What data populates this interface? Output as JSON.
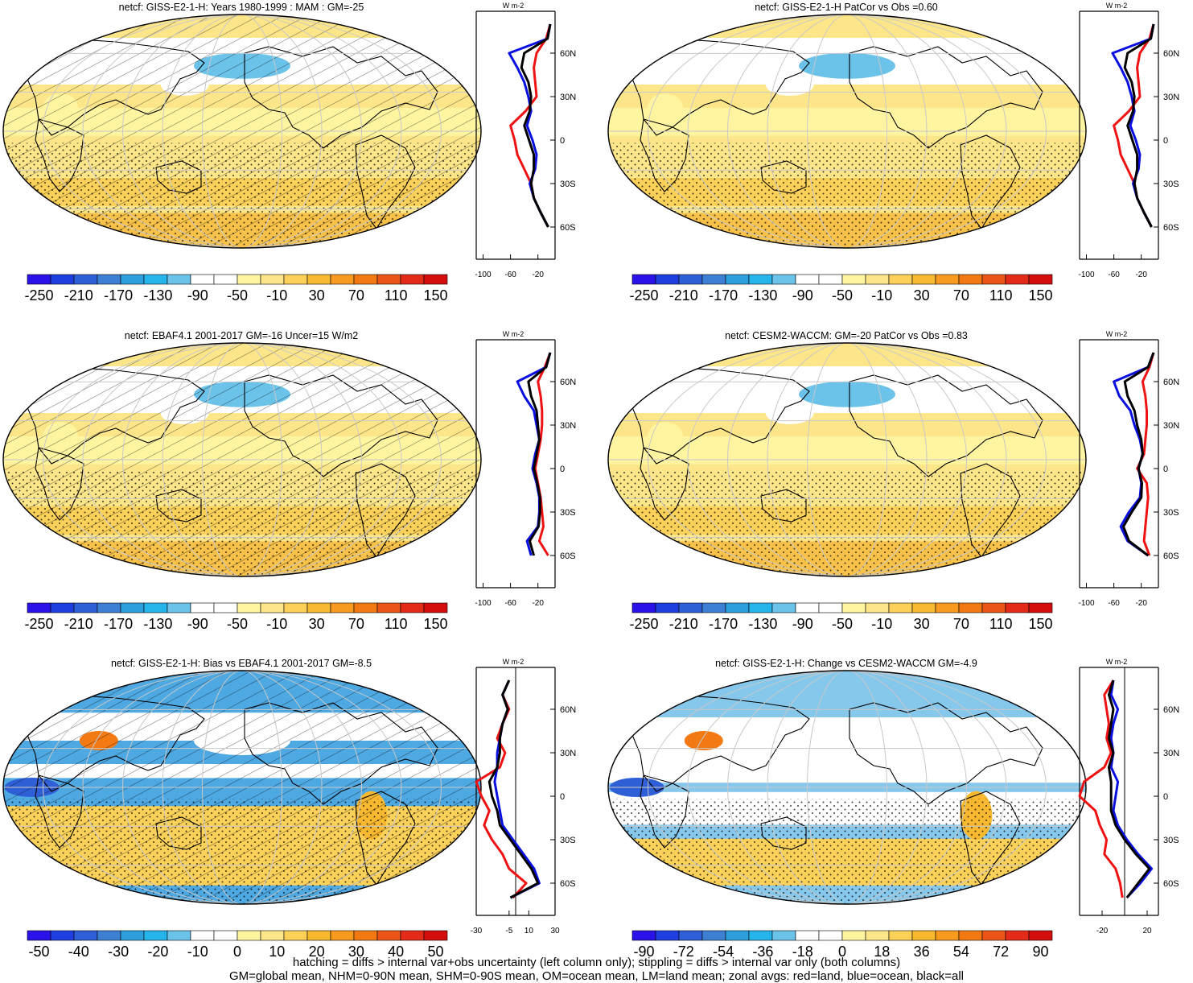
{
  "palettes": {
    "blue_red": [
      "#2a12e8",
      "#1f3ee0",
      "#2f5fd6",
      "#3d7fd2",
      "#2c9fdc",
      "#27b4ea",
      "#6cc3ea",
      "#ffffff",
      "#ffffff",
      "#fff5a0",
      "#fde68a",
      "#fbd15a",
      "#f8b82f",
      "#f79a1f",
      "#f37a12",
      "#ec5518",
      "#e42a18",
      "#d40d0d"
    ],
    "colors": {
      "ocean_zonal": "#0a10e0",
      "land_zonal": "#ee1212",
      "all_zonal": "#000000",
      "grid": "#c8c8c8",
      "coast": "#000000"
    }
  },
  "chart_data": [
    {
      "id": "p1",
      "type": "heatmap",
      "title": "netcf: GISS-E2-1-H: Years 1980-1999 : MAM : GM=-25",
      "colorbar_labels": [
        "-250",
        "-210",
        "-170",
        "-130",
        "-90",
        "-50",
        "-10",
        "30",
        "70",
        "110",
        "150"
      ],
      "zonal": {
        "xticks": [
          "-100",
          "-60",
          "-20"
        ],
        "xrange": [
          -110,
          5
        ],
        "unit": "W m-2",
        "lat_labels": [
          "60N",
          "30N",
          "0",
          "30S",
          "60S"
        ],
        "lat": [
          80,
          70,
          60,
          50,
          40,
          30,
          20,
          10,
          0,
          -10,
          -20,
          -30,
          -40,
          -50,
          -60
        ],
        "land": [
          -2,
          -8,
          -22,
          -26,
          -24,
          -22,
          -38,
          -60,
          -54,
          -50,
          -40,
          -30,
          -26,
          -16,
          -5
        ],
        "ocean": [
          -2,
          -6,
          -62,
          -50,
          -40,
          -34,
          -30,
          -36,
          -28,
          -22,
          -24,
          -32,
          -26,
          -16,
          -5
        ],
        "all": [
          -2,
          -6,
          -40,
          -44,
          -34,
          -30,
          -32,
          -40,
          -33,
          -26,
          -26,
          -30,
          -26,
          -16,
          -5
        ]
      }
    },
    {
      "id": "p2",
      "type": "heatmap",
      "title": "netcf: GISS-E2-1-H PatCor vs Obs =0.60",
      "colorbar_labels": [
        "-250",
        "-210",
        "-170",
        "-130",
        "-90",
        "-50",
        "-10",
        "30",
        "70",
        "110",
        "150"
      ],
      "zonal": {
        "xticks": [
          "-100",
          "-60",
          "-20"
        ],
        "xrange": [
          -110,
          5
        ],
        "unit": "W m-2",
        "lat_labels": [
          "60N",
          "30N",
          "0",
          "30S",
          "60S"
        ],
        "lat": [
          80,
          70,
          60,
          50,
          40,
          30,
          20,
          10,
          0,
          -10,
          -20,
          -30,
          -40,
          -50,
          -60
        ],
        "land": [
          -2,
          -8,
          -22,
          -26,
          -24,
          -22,
          -38,
          -60,
          -54,
          -50,
          -40,
          -30,
          -26,
          -16,
          -5
        ],
        "ocean": [
          -2,
          -6,
          -62,
          -50,
          -40,
          -34,
          -30,
          -36,
          -28,
          -22,
          -24,
          -32,
          -26,
          -16,
          -5
        ],
        "all": [
          -2,
          -6,
          -40,
          -44,
          -34,
          -30,
          -32,
          -40,
          -33,
          -26,
          -26,
          -30,
          -26,
          -16,
          -5
        ]
      }
    },
    {
      "id": "p3",
      "type": "heatmap",
      "title": "netcf: EBAF4.1 2001-2017 GM=-16 Uncer=15 W/m2",
      "colorbar_labels": [
        "-250",
        "-210",
        "-170",
        "-130",
        "-90",
        "-50",
        "-10",
        "30",
        "70",
        "110",
        "150"
      ],
      "zonal": {
        "xticks": [
          "-100",
          "-60",
          "-20"
        ],
        "xrange": [
          -110,
          5
        ],
        "unit": "W m-2",
        "lat_labels": [
          "60N",
          "30N",
          "0",
          "30S",
          "60S"
        ],
        "lat": [
          80,
          70,
          60,
          50,
          40,
          30,
          20,
          10,
          0,
          -10,
          -20,
          -30,
          -40,
          -50,
          -60
        ],
        "land": [
          -2,
          -10,
          -20,
          -16,
          -14,
          -14,
          -16,
          -20,
          -24,
          -20,
          -16,
          -14,
          -12,
          -18,
          -5
        ],
        "ocean": [
          -2,
          -8,
          -50,
          -40,
          -26,
          -22,
          -18,
          -24,
          -28,
          -22,
          -18,
          -18,
          -20,
          -36,
          -30
        ],
        "all": [
          -2,
          -8,
          -34,
          -30,
          -22,
          -20,
          -18,
          -22,
          -26,
          -21,
          -17,
          -17,
          -19,
          -32,
          -26
        ]
      }
    },
    {
      "id": "p4",
      "type": "heatmap",
      "title": "netcf: CESM2-WACCM: GM=-20 PatCor vs Obs =0.83",
      "colorbar_labels": [
        "-250",
        "-210",
        "-170",
        "-130",
        "-90",
        "-50",
        "-10",
        "30",
        "70",
        "110",
        "150"
      ],
      "zonal": {
        "xticks": [
          "-100",
          "-60",
          "-20"
        ],
        "xrange": [
          -110,
          5
        ],
        "unit": "W m-2",
        "lat_labels": [
          "60N",
          "30N",
          "0",
          "30S",
          "60S"
        ],
        "lat": [
          80,
          70,
          60,
          50,
          40,
          30,
          20,
          10,
          0,
          -10,
          -20,
          -30,
          -40,
          -50,
          -60
        ],
        "land": [
          -2,
          -8,
          -18,
          -14,
          -12,
          -12,
          -14,
          -16,
          -26,
          -12,
          -10,
          -12,
          -14,
          -16,
          -8
        ],
        "ocean": [
          -2,
          -10,
          -60,
          -52,
          -36,
          -30,
          -22,
          -18,
          -24,
          -20,
          -22,
          -38,
          -50,
          -40,
          -10
        ],
        "all": [
          -2,
          -10,
          -44,
          -40,
          -30,
          -26,
          -20,
          -18,
          -24,
          -19,
          -20,
          -34,
          -46,
          -38,
          -10
        ]
      }
    },
    {
      "id": "p5",
      "type": "heatmap",
      "title": "netcf: GISS-E2-1-H: Bias vs EBAF4.1 2001-2017 GM=-8.5",
      "colorbar_labels": [
        "-50",
        "-40",
        "-30",
        "-20",
        "-10",
        "0",
        "10",
        "20",
        "30",
        "40",
        "50"
      ],
      "zonal": {
        "xticks": [
          "-30",
          "-5",
          "10",
          "30"
        ],
        "xrange": [
          -30,
          30
        ],
        "unit": "W m-2",
        "lat_labels": [
          "60N",
          "30N",
          "0",
          "30S",
          "60S"
        ],
        "lat": [
          80,
          70,
          60,
          50,
          40,
          30,
          20,
          10,
          0,
          -10,
          -20,
          -30,
          -40,
          -50,
          -60,
          -70
        ],
        "land": [
          -5,
          -10,
          -5,
          -10,
          -14,
          -8,
          -12,
          -30,
          -26,
          -20,
          -24,
          -18,
          -10,
          -5,
          8,
          -2
        ],
        "ocean": [
          -5,
          -10,
          -6,
          -10,
          -12,
          -14,
          -14,
          -16,
          -14,
          -12,
          -10,
          -2,
          6,
          14,
          18,
          -4
        ],
        "all": [
          -5,
          -10,
          -6,
          -10,
          -12,
          -12,
          -14,
          -20,
          -18,
          -14,
          -12,
          -4,
          4,
          12,
          17,
          -4
        ]
      }
    },
    {
      "id": "p6",
      "type": "heatmap",
      "title": "netcf: GISS-E2-1-H: Change vs CESM2-WACCM GM=-4.9",
      "colorbar_labels": [
        "-90",
        "-72",
        "-54",
        "-36",
        "-18",
        "0",
        "18",
        "36",
        "54",
        "72",
        "90"
      ],
      "zonal": {
        "xticks": [
          "-20",
          "20"
        ],
        "xrange": [
          -40,
          30
        ],
        "unit": "W m-2",
        "lat_labels": [
          "60N",
          "30N",
          "0",
          "30S",
          "60S"
        ],
        "lat": [
          80,
          70,
          60,
          50,
          40,
          30,
          20,
          10,
          0,
          -10,
          -20,
          -30,
          -40,
          -50,
          -60,
          -70
        ],
        "land": [
          -10,
          -18,
          -16,
          -14,
          -16,
          -12,
          -18,
          -36,
          -40,
          -26,
          -22,
          -16,
          -18,
          -8,
          -4,
          -2
        ],
        "ocean": [
          -10,
          -12,
          -6,
          -10,
          -12,
          -10,
          -12,
          -6,
          -8,
          -10,
          -6,
          2,
          12,
          24,
          14,
          2
        ],
        "all": [
          -10,
          -14,
          -10,
          -12,
          -14,
          -10,
          -14,
          -12,
          -12,
          -12,
          -8,
          0,
          10,
          22,
          12,
          2
        ]
      }
    }
  ],
  "footer": {
    "line1": "hatching = diffs > internal var+obs uncertainty (left column only); stippling = diffs > internal var only (both columns)",
    "line2": "GM=global mean, NHM=0-90N mean, SHM=0-90S mean, OM=ocean mean, LM=land mean; zonal avgs: red=land, blue=ocean, black=all"
  }
}
